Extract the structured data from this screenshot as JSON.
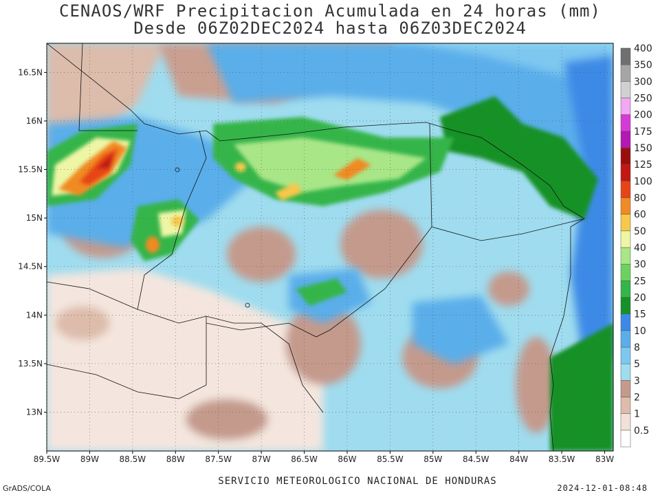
{
  "title": {
    "line1": "CENAOS/WRF Precipitacion Acumulada en 24 horas (mm)",
    "line2": "Desde 06Z02DEC2024 hasta 06Z03DEC2024"
  },
  "map": {
    "lat_labels": [
      "16.5N",
      "16N",
      "15.5N",
      "15N",
      "14.5N",
      "14N",
      "13.5N",
      "13N"
    ],
    "lat_values": [
      16.5,
      16.0,
      15.5,
      15.0,
      14.5,
      14.0,
      13.5,
      13.0
    ],
    "lon_labels": [
      "89.5W",
      "89W",
      "88.5W",
      "88W",
      "87.5W",
      "87W",
      "86.5W",
      "86W",
      "85.5W",
      "85W",
      "84.5W",
      "84W",
      "83.5W",
      "83W"
    ],
    "lon_values": [
      -89.5,
      -89.0,
      -88.5,
      -88.0,
      -87.5,
      -87.0,
      -86.5,
      -86.0,
      -85.5,
      -85.0,
      -84.5,
      -84.0,
      -83.5,
      -83.0
    ],
    "extent": {
      "lon_min": -89.5,
      "lon_max": -82.9,
      "lat_min": 12.6,
      "lat_max": 16.8
    }
  },
  "colorbar": {
    "levels": [
      "0.5",
      "1",
      "2",
      "3",
      "5",
      "8",
      "10",
      "15",
      "20",
      "25",
      "30",
      "40",
      "50",
      "60",
      "80",
      "100",
      "125",
      "150",
      "175",
      "200",
      "250",
      "300",
      "350",
      "400"
    ],
    "colors": [
      "#ffffff",
      "#f2e1d8",
      "#ddbcab",
      "#c49a8c",
      "#9fdcef",
      "#7ec7f0",
      "#5aaeea",
      "#3c8ae6",
      "#169128",
      "#34b54a",
      "#6cd25f",
      "#a8e688",
      "#eef6a6",
      "#f6c84c",
      "#f08a24",
      "#e84416",
      "#c31712",
      "#9c0e0e",
      "#b417b4",
      "#d63ad6",
      "#f2a8f2",
      "#d0d0d0",
      "#a6a6a6",
      "#707070"
    ]
  },
  "footer": {
    "center": "SERVICIO METEOROLOGICO NACIONAL DE HONDURAS",
    "left": "GrADS/COLA",
    "right": "2024-12-01-08:48"
  }
}
